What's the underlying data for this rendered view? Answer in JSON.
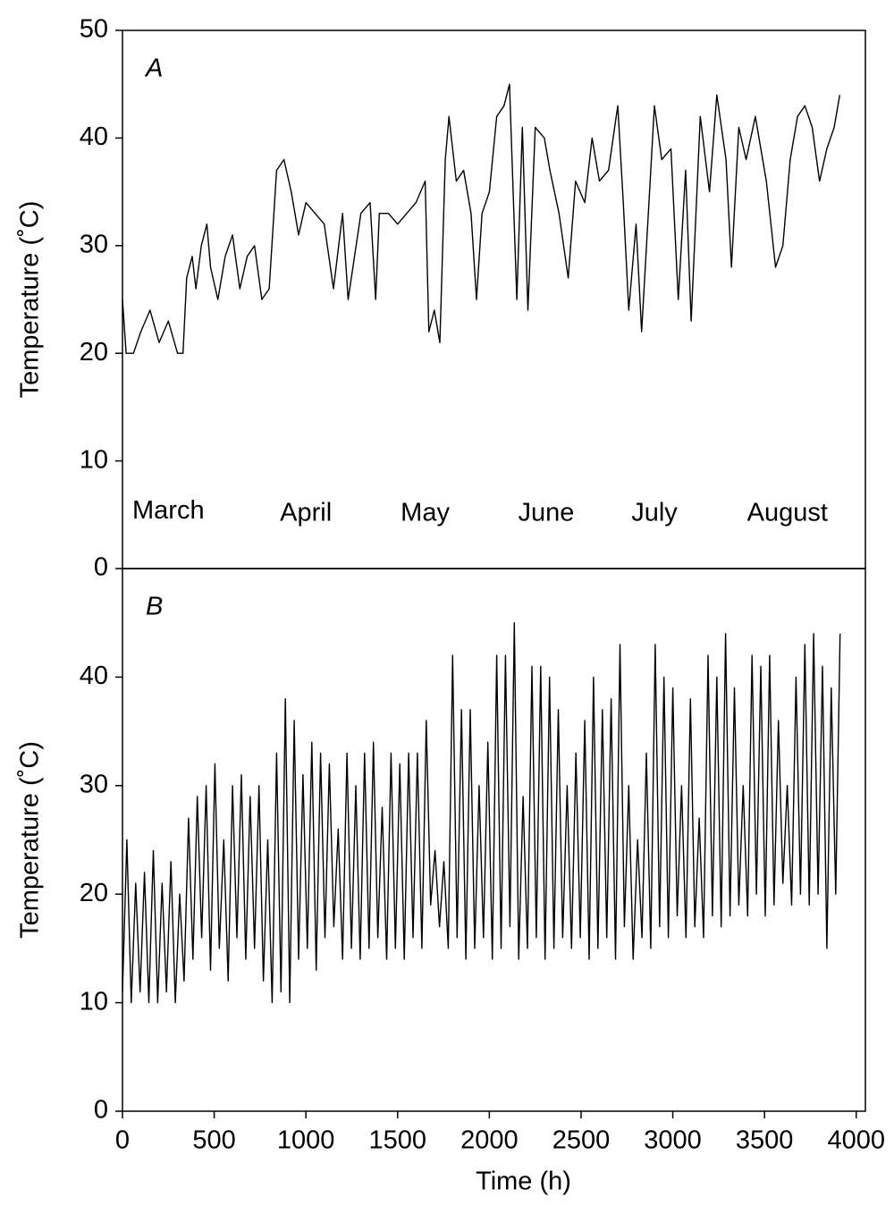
{
  "chart_data": [
    {
      "type": "line",
      "panel_label": "A",
      "ylabel": "Temperature (˚C)",
      "xlim": [
        0,
        4050
      ],
      "ylim": [
        0,
        50
      ],
      "yticks": [
        0,
        10,
        20,
        30,
        40,
        50
      ],
      "annotations": [
        {
          "text": "March",
          "x": 250,
          "y": 5.3
        },
        {
          "text": "April",
          "x": 1000,
          "y": 5.1
        },
        {
          "text": "May",
          "x": 1650,
          "y": 5.1
        },
        {
          "text": "June",
          "x": 2310,
          "y": 5.1
        },
        {
          "text": "July",
          "x": 2900,
          "y": 5.1
        },
        {
          "text": "August",
          "x": 3625,
          "y": 5.1
        }
      ],
      "series": [
        {
          "color": "#000000",
          "x": [
            0,
            20,
            60,
            100,
            150,
            200,
            250,
            300,
            330,
            350,
            380,
            400,
            430,
            460,
            480,
            520,
            560,
            600,
            640,
            680,
            720,
            760,
            800,
            840,
            880,
            920,
            960,
            1000,
            1050,
            1100,
            1150,
            1200,
            1230,
            1300,
            1350,
            1380,
            1400,
            1450,
            1500,
            1550,
            1600,
            1650,
            1670,
            1700,
            1730,
            1760,
            1780,
            1820,
            1860,
            1900,
            1930,
            1960,
            2000,
            2040,
            2080,
            2110,
            2150,
            2180,
            2210,
            2250,
            2300,
            2330,
            2380,
            2430,
            2470,
            2520,
            2560,
            2600,
            2650,
            2700,
            2730,
            2760,
            2800,
            2830,
            2870,
            2900,
            2940,
            2990,
            3030,
            3070,
            3100,
            3150,
            3200,
            3240,
            3290,
            3320,
            3360,
            3400,
            3450,
            3510,
            3560,
            3600,
            3640,
            3680,
            3720,
            3760,
            3800,
            3840,
            3880,
            3910
          ],
          "values": [
            25,
            20,
            20,
            22,
            24,
            21,
            23,
            20,
            20,
            27,
            29,
            26,
            30,
            32,
            28,
            25,
            29,
            31,
            26,
            29,
            30,
            25,
            26,
            37,
            38,
            35,
            31,
            34,
            33,
            32,
            26,
            33,
            25,
            33,
            34,
            25,
            33,
            33,
            32,
            33,
            34,
            36,
            22,
            24,
            21,
            38,
            42,
            36,
            37,
            33,
            25,
            33,
            35,
            42,
            43,
            45,
            25,
            41,
            24,
            41,
            40,
            37,
            33,
            27,
            36,
            34,
            40,
            36,
            37,
            43,
            34,
            24,
            32,
            22,
            34,
            43,
            38,
            39,
            25,
            37,
            23,
            42,
            35,
            44,
            38,
            28,
            41,
            38,
            42,
            36,
            28,
            30,
            38,
            42,
            43,
            41,
            36,
            39,
            41,
            44
          ]
        }
      ]
    },
    {
      "type": "line",
      "panel_label": "B",
      "ylabel": "Temperature (˚C)",
      "xlabel": "Time (h)",
      "xlim": [
        0,
        4050
      ],
      "ylim": [
        0,
        50
      ],
      "yticks": [
        0,
        10,
        20,
        30,
        40
      ],
      "xticks": [
        0,
        500,
        1000,
        1500,
        2000,
        2500,
        3000,
        3500,
        4000
      ],
      "series": [
        {
          "color": "#000000",
          "x": [
            0,
            24,
            48,
            72,
            96,
            120,
            144,
            168,
            192,
            216,
            240,
            264,
            288,
            312,
            336,
            360,
            384,
            408,
            432,
            456,
            480,
            504,
            528,
            552,
            576,
            600,
            624,
            648,
            672,
            696,
            720,
            744,
            768,
            792,
            816,
            840,
            864,
            888,
            912,
            936,
            960,
            984,
            1008,
            1032,
            1056,
            1080,
            1104,
            1128,
            1152,
            1176,
            1200,
            1224,
            1248,
            1272,
            1296,
            1320,
            1344,
            1368,
            1392,
            1416,
            1440,
            1464,
            1488,
            1512,
            1536,
            1560,
            1584,
            1608,
            1632,
            1656,
            1680,
            1704,
            1728,
            1752,
            1776,
            1800,
            1824,
            1848,
            1872,
            1896,
            1920,
            1944,
            1968,
            1992,
            2016,
            2040,
            2064,
            2088,
            2112,
            2136,
            2160,
            2184,
            2208,
            2232,
            2256,
            2280,
            2304,
            2328,
            2352,
            2376,
            2400,
            2424,
            2448,
            2472,
            2496,
            2520,
            2544,
            2568,
            2592,
            2616,
            2640,
            2664,
            2688,
            2712,
            2736,
            2760,
            2784,
            2808,
            2832,
            2856,
            2880,
            2904,
            2928,
            2952,
            2976,
            3000,
            3024,
            3048,
            3072,
            3096,
            3120,
            3144,
            3168,
            3192,
            3216,
            3240,
            3264,
            3288,
            3312,
            3336,
            3360,
            3384,
            3408,
            3432,
            3456,
            3480,
            3504,
            3528,
            3552,
            3576,
            3600,
            3624,
            3648,
            3672,
            3696,
            3720,
            3744,
            3768,
            3792,
            3816,
            3840,
            3864,
            3888,
            3912
          ],
          "values": [
            11,
            25,
            10,
            21,
            11,
            22,
            10,
            24,
            10,
            21,
            11,
            23,
            10,
            20,
            12,
            27,
            14,
            29,
            16,
            30,
            13,
            32,
            15,
            25,
            12,
            30,
            16,
            31,
            14,
            29,
            15,
            30,
            12,
            25,
            10,
            33,
            11,
            38,
            10,
            36,
            14,
            31,
            15,
            34,
            13,
            33,
            16,
            32,
            17,
            26,
            14,
            33,
            15,
            30,
            14,
            33,
            15,
            34,
            16,
            28,
            14,
            33,
            15,
            32,
            14,
            33,
            16,
            33,
            15,
            36,
            19,
            24,
            17,
            23,
            15,
            42,
            16,
            37,
            14,
            37,
            15,
            30,
            16,
            34,
            14,
            42,
            15,
            42,
            17,
            45,
            14,
            29,
            15,
            41,
            16,
            41,
            14,
            40,
            15,
            37,
            16,
            30,
            15,
            33,
            16,
            36,
            14,
            40,
            15,
            37,
            16,
            38,
            14,
            43,
            17,
            30,
            14,
            25,
            16,
            33,
            15,
            43,
            17,
            40,
            16,
            39,
            18,
            30,
            16,
            38,
            17,
            27,
            16,
            42,
            18,
            40,
            17,
            44,
            18,
            39,
            19,
            30,
            18,
            42,
            20,
            41,
            18,
            42,
            19,
            36,
            21,
            30,
            19,
            40,
            20,
            43,
            19,
            44,
            20,
            41,
            15,
            39,
            20,
            44
          ]
        }
      ]
    }
  ]
}
